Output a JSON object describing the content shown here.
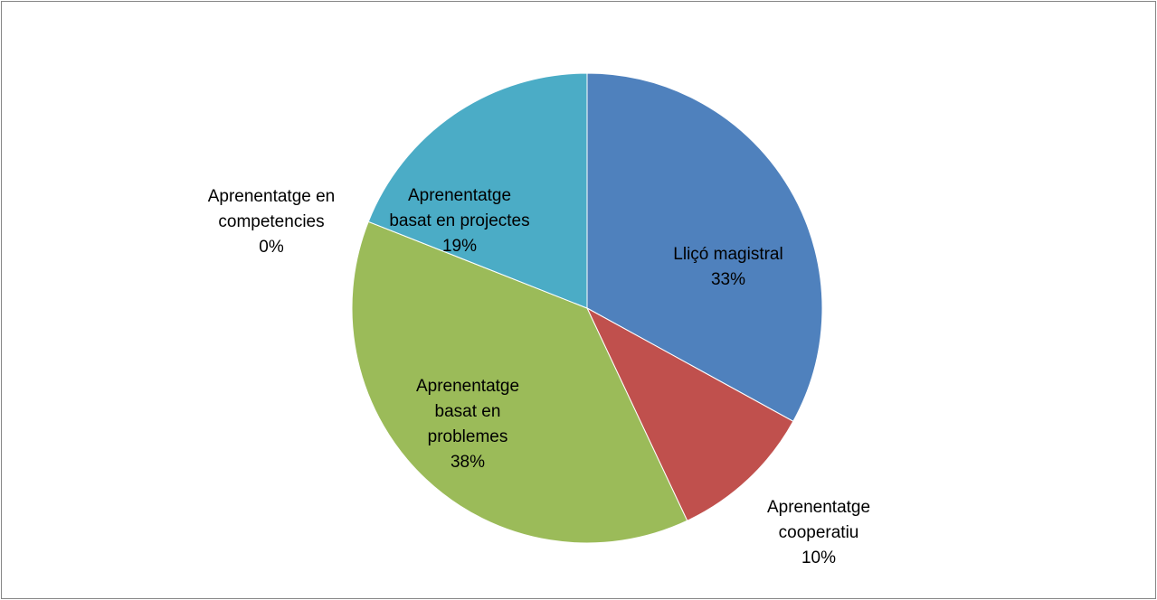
{
  "chart_data": {
    "type": "pie",
    "categories": [
      "Lliçó magistral",
      "Aprenentatge cooperatiu",
      "Aprenentatge basat en problemes",
      "Aprenentatge en competencies",
      "Aprenentatge basat en projectes"
    ],
    "values": [
      33,
      10,
      38,
      0,
      19
    ],
    "value_labels": [
      "33%",
      "10%",
      "38%",
      "0%",
      "19%"
    ],
    "colors": [
      "#4f81bd",
      "#c0504d",
      "#9bbb59",
      "#8064a2",
      "#4bacc6"
    ]
  }
}
